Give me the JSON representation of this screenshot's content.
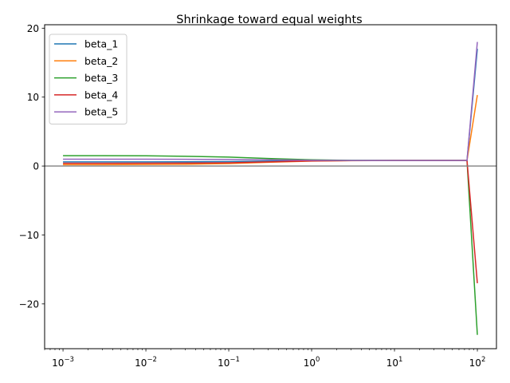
{
  "chart_data": {
    "type": "line",
    "title": "Shrinkage toward equal weights",
    "xlabel": "",
    "ylabel": "",
    "xscale": "log",
    "xlim": [
      0.0006,
      170
    ],
    "ylim": [
      -26.5,
      20.5
    ],
    "x_ticks": [
      {
        "value": 0.001,
        "exp": "−3"
      },
      {
        "value": 0.01,
        "exp": "−2"
      },
      {
        "value": 0.1,
        "exp": "−1"
      },
      {
        "value": 1,
        "exp": "0"
      },
      {
        "value": 10,
        "exp": "1"
      },
      {
        "value": 100,
        "exp": "2"
      }
    ],
    "y_ticks": [
      {
        "value": 20,
        "label": "20"
      },
      {
        "value": 10,
        "label": "10"
      },
      {
        "value": 0,
        "label": "0"
      },
      {
        "value": -10,
        "label": "−10"
      },
      {
        "value": -20,
        "label": "−20"
      }
    ],
    "reference_line": {
      "y": 0,
      "color": "#808080"
    },
    "legend_position": "upper-left",
    "grid": false,
    "x": [
      0.001,
      0.003,
      0.01,
      0.03,
      0.1,
      0.3,
      1,
      3,
      10,
      30,
      75,
      100
    ],
    "series": [
      {
        "name": "beta_1",
        "color": "#1f77b4",
        "values": [
          0.6,
          0.6,
          0.6,
          0.62,
          0.65,
          0.72,
          0.78,
          0.8,
          0.8,
          0.8,
          0.8,
          17.0
        ]
      },
      {
        "name": "beta_2",
        "color": "#ff7f0e",
        "values": [
          0.2,
          0.2,
          0.22,
          0.26,
          0.35,
          0.55,
          0.72,
          0.78,
          0.8,
          0.8,
          0.8,
          10.3
        ]
      },
      {
        "name": "beta_3",
        "color": "#2ca02c",
        "values": [
          1.5,
          1.5,
          1.48,
          1.42,
          1.3,
          1.1,
          0.9,
          0.82,
          0.8,
          0.8,
          0.8,
          -24.5
        ]
      },
      {
        "name": "beta_4",
        "color": "#d62728",
        "values": [
          0.4,
          0.4,
          0.41,
          0.43,
          0.48,
          0.6,
          0.74,
          0.79,
          0.8,
          0.8,
          0.8,
          -17.0
        ]
      },
      {
        "name": "beta_5",
        "color": "#9467bd",
        "values": [
          1.0,
          1.0,
          1.0,
          0.98,
          0.95,
          0.9,
          0.84,
          0.81,
          0.8,
          0.8,
          0.8,
          18.0
        ]
      }
    ]
  }
}
